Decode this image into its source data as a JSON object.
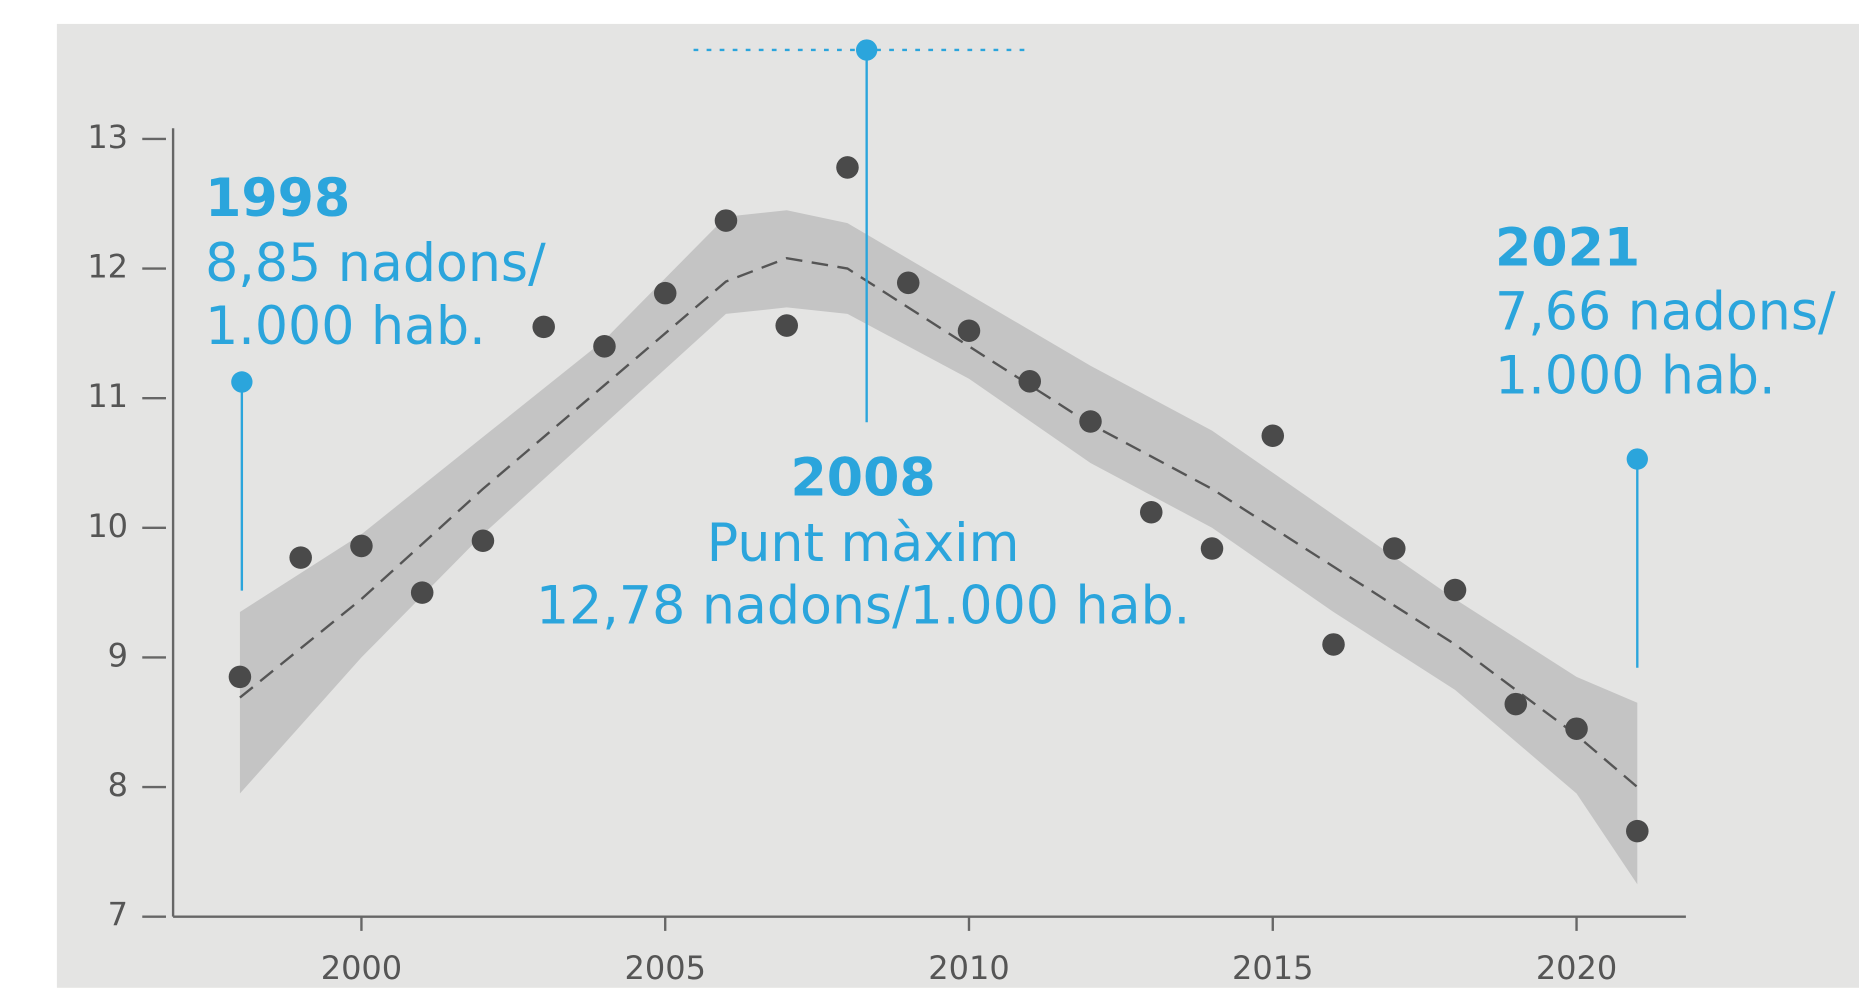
{
  "chart_data": {
    "type": "scatter",
    "x": [
      1998,
      1999,
      2000,
      2001,
      2002,
      2003,
      2004,
      2005,
      2006,
      2007,
      2008,
      2009,
      2010,
      2011,
      2012,
      2013,
      2014,
      2015,
      2016,
      2017,
      2018,
      2019,
      2020,
      2021
    ],
    "values": [
      8.85,
      9.77,
      9.86,
      9.5,
      9.9,
      11.55,
      11.4,
      11.81,
      12.37,
      11.56,
      12.78,
      11.89,
      11.52,
      11.13,
      10.82,
      10.12,
      9.84,
      10.71,
      9.1,
      9.84,
      9.52,
      8.64,
      8.45,
      7.66
    ],
    "color": "#4a4a4a",
    "trend": {
      "color": "#555555",
      "x": [
        1998,
        2000,
        2002,
        2004,
        2006,
        2007,
        2008,
        2010,
        2012,
        2014,
        2016,
        2018,
        2020,
        2021
      ],
      "values": [
        8.69,
        9.45,
        10.3,
        11.1,
        11.9,
        12.08,
        12.0,
        11.4,
        10.8,
        10.3,
        9.7,
        9.1,
        8.4,
        8.0
      ],
      "lower": [
        7.95,
        9.0,
        9.95,
        10.8,
        11.65,
        11.7,
        11.65,
        11.15,
        10.5,
        10.0,
        9.35,
        8.75,
        7.95,
        7.25
      ],
      "upper": [
        9.35,
        9.95,
        10.7,
        11.45,
        12.4,
        12.45,
        12.35,
        11.8,
        11.25,
        10.75,
        10.1,
        9.45,
        8.85,
        8.65
      ],
      "band_color": "#c4c4c4"
    },
    "xlim": [
      1996.9,
      2021.8
    ],
    "ylim": [
      7,
      13
    ],
    "xticks": [
      2000,
      2005,
      2010,
      2015,
      2020
    ],
    "yticks": [
      7,
      8,
      9,
      10,
      11,
      12,
      13
    ],
    "annotations": [
      {
        "title": "1998",
        "lines": [
          "8,85 nadons/",
          "1.000 hab."
        ]
      },
      {
        "title": "2008",
        "lines": [
          "Punt màxim",
          "12,78 nadons/1.000 hab."
        ]
      },
      {
        "title": "2021",
        "lines": [
          "7,66 nadons/",
          "1.000 hab."
        ]
      }
    ]
  }
}
